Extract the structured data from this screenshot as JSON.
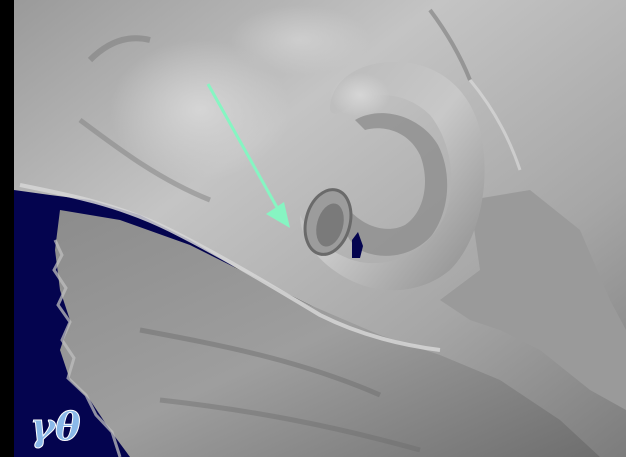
{
  "viewer": {
    "background_color": "#000000",
    "backdrop_color": "#04044f",
    "surface_color": "#a8a8a8",
    "pointer_color": "#86f5c2",
    "logo_color": "#8ab8e8",
    "pointer": {
      "icon": "arrow-icon"
    },
    "logo": {
      "icon": "gamma-theta-logo",
      "text": "γθ"
    }
  }
}
